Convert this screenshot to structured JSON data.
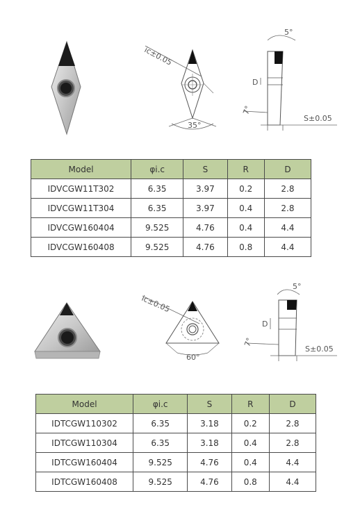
{
  "columns": [
    "Model",
    "φi.c",
    "S",
    "R",
    "D"
  ],
  "sections": [
    {
      "drawing_labels": {
        "ic": "ic±0.05",
        "angle": "35°",
        "clearance": "5°",
        "relief": "7°",
        "d": "D",
        "s": "S±0.05"
      },
      "rows": [
        [
          "IDVCGW11T302",
          "6.35",
          "3.97",
          "0.2",
          "2.8"
        ],
        [
          "IDVCGW11T304",
          "6.35",
          "3.97",
          "0.4",
          "2.8"
        ],
        [
          "IDVCGW160404",
          "9.525",
          "4.76",
          "0.4",
          "4.4"
        ],
        [
          "IDVCGW160408",
          "9.525",
          "4.76",
          "0.8",
          "4.4"
        ]
      ]
    },
    {
      "drawing_labels": {
        "ic": "ic±0.05",
        "angle": "60°",
        "clearance": "5°",
        "relief": "7°",
        "d": "D",
        "s": "S±0.05"
      },
      "rows": [
        [
          "IDTCGW110302",
          "6.35",
          "3.18",
          "0.2",
          "2.8"
        ],
        [
          "IDTCGW110304",
          "6.35",
          "3.18",
          "0.4",
          "2.8"
        ],
        [
          "IDTCGW160404",
          "9.525",
          "4.76",
          "0.4",
          "4.4"
        ],
        [
          "IDTCGW160408",
          "9.525",
          "4.76",
          "0.8",
          "4.4"
        ]
      ]
    }
  ]
}
